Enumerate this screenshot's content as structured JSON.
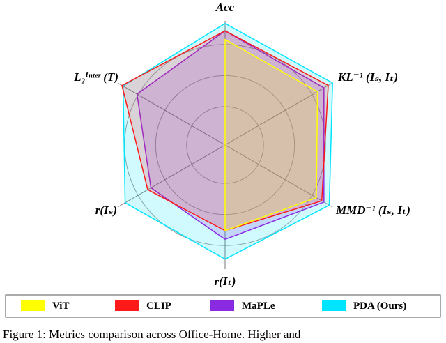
{
  "chart_data": {
    "type": "radar",
    "categories": [
      "Acc",
      "KL⁻¹ (Iₛ, Iₜ)",
      "MMD⁻¹ (Iₛ, Iₜ)",
      "r(Iₜ)",
      "r(Iₛ)",
      "L₂ⁱⁿᵗᵉʳ (T)"
    ],
    "rlim": [
      0,
      100
    ],
    "rticks": [
      31,
      56,
      81
    ],
    "series": [
      {
        "name": "ViT",
        "color": "#ffff00",
        "values": [
          85,
          86,
          85,
          69,
          0,
          0
        ]
      },
      {
        "name": "CLIP",
        "color": "#ff1a1a",
        "values": [
          92,
          96,
          90,
          69,
          72,
          96
        ]
      },
      {
        "name": "MaPLe",
        "color": "#8a2be2",
        "values": [
          92,
          92,
          92,
          76,
          69,
          82
        ]
      },
      {
        "name": "PDA (Ours)",
        "color": "#00e5ff",
        "values": [
          98,
          100,
          97,
          92,
          93,
          95
        ]
      }
    ],
    "caption": "Figure 1: Metrics comparison across Office-Home. Higher and"
  }
}
